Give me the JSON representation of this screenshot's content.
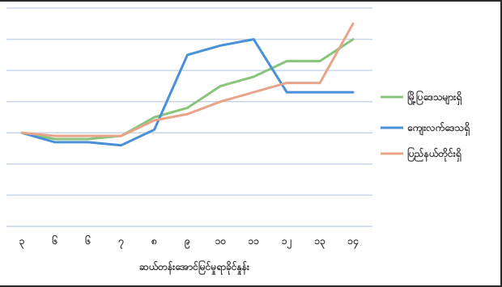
{
  "chart_data": {
    "type": "line",
    "title": "",
    "xlabel": "ဆယ်တန်းအောင်မြင်မှုရာခိုင်နှုန်း",
    "ylabel": "",
    "categories": [
      "၃",
      "၆",
      "၆",
      "၇",
      "၈",
      "၉",
      "၁၀",
      "၁၁",
      "၁၂",
      "၁၃",
      "၁၄"
    ],
    "ylim": [
      0,
      7
    ],
    "grid": true,
    "legend": "right",
    "series": [
      {
        "name": "မြို့ပြဒေသများရှိ",
        "color": "#88c57a",
        "values": [
          3.0,
          2.8,
          2.8,
          2.9,
          3.5,
          3.8,
          4.5,
          4.8,
          5.3,
          5.3,
          6.0
        ]
      },
      {
        "name": "ကျေးလက်ဒေသရှိ",
        "color": "#4a90d9",
        "values": [
          3.0,
          2.7,
          2.7,
          2.6,
          3.1,
          5.5,
          5.8,
          6.0,
          4.3,
          4.3,
          4.3
        ]
      },
      {
        "name": "ပြည်နယ်တိုင်းရှိ",
        "color": "#e8a48a",
        "values": [
          3.0,
          2.9,
          2.9,
          2.9,
          3.4,
          3.6,
          4.0,
          4.3,
          4.6,
          4.6,
          6.5
        ]
      }
    ]
  }
}
